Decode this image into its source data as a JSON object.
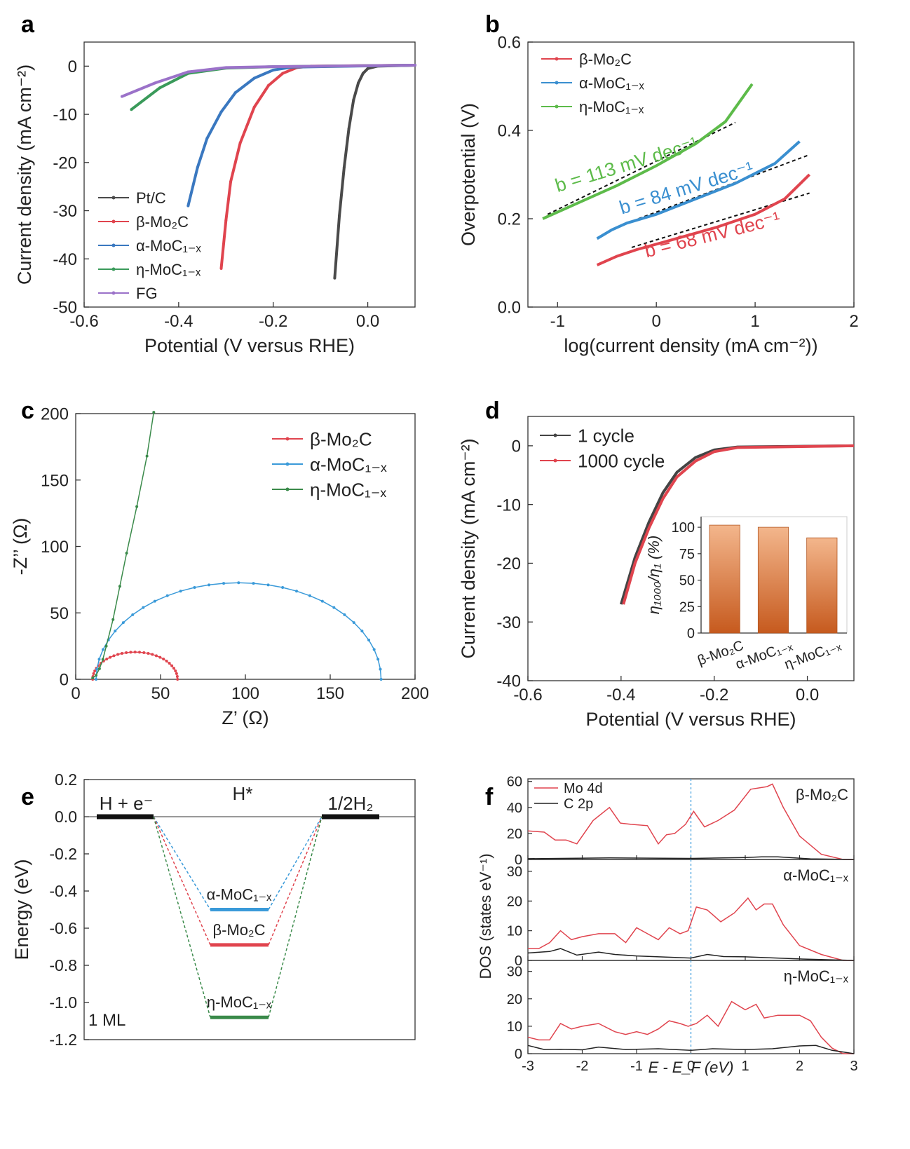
{
  "panels": {
    "a": "a",
    "b": "b",
    "c": "c",
    "d": "d",
    "e": "e",
    "f": "f"
  },
  "chart_data": [
    {
      "id": "a",
      "type": "line",
      "xlabel": "Potential (V versus RHE)",
      "ylabel": "Current density (mA cm⁻²)",
      "xlim": [
        -0.6,
        0.1
      ],
      "ylim": [
        -50,
        5
      ],
      "xticks": [
        -0.6,
        -0.4,
        -0.2,
        0.0
      ],
      "xtick_labels": [
        "-0.6",
        "-0.4",
        "-0.2",
        "0.0"
      ],
      "yticks": [
        0,
        -10,
        -20,
        -30,
        -40,
        -50
      ],
      "ytick_labels": [
        "0",
        "-10",
        "-20",
        "-30",
        "-40",
        "-50"
      ],
      "legend": "bottom-left",
      "grid": false,
      "series": [
        {
          "name": "Pt/C",
          "color": "#4a4a4a",
          "x": [
            0.1,
            0.02,
            0.0,
            -0.01,
            -0.02,
            -0.03,
            -0.04,
            -0.05,
            -0.06,
            -0.07
          ],
          "y": [
            0.2,
            0,
            -0.5,
            -1.5,
            -3.5,
            -7,
            -13,
            -21,
            -31,
            -44
          ]
        },
        {
          "name": "β-Mo₂C",
          "color": "#e0444e",
          "x": [
            0.1,
            -0.12,
            -0.15,
            -0.18,
            -0.21,
            -0.24,
            -0.27,
            -0.29,
            -0.3,
            -0.31
          ],
          "y": [
            0.2,
            0,
            -0.3,
            -1.5,
            -4,
            -8.5,
            -16,
            -24,
            -32,
            -42
          ]
        },
        {
          "name": "α-MoC₁₋ₓ",
          "color": "#3a78c0",
          "x": [
            0.1,
            -0.16,
            -0.2,
            -0.24,
            -0.28,
            -0.31,
            -0.34,
            -0.36,
            -0.38
          ],
          "y": [
            0.2,
            -0.2,
            -0.8,
            -2.5,
            -5.5,
            -9.5,
            -15,
            -21,
            -29
          ]
        },
        {
          "name": "η-MoC₁₋ₓ",
          "color": "#3a9a5a",
          "x": [
            0.1,
            -0.2,
            -0.3,
            -0.38,
            -0.44,
            -0.5
          ],
          "y": [
            0.2,
            -0.1,
            -0.4,
            -1.5,
            -4.5,
            -9
          ]
        },
        {
          "name": "FG",
          "color": "#9b72c9",
          "x": [
            0.1,
            -0.2,
            -0.3,
            -0.38,
            -0.45,
            -0.52
          ],
          "y": [
            0.2,
            -0.1,
            -0.3,
            -1.2,
            -3.5,
            -6.3
          ]
        }
      ]
    },
    {
      "id": "b",
      "type": "line",
      "xlabel": "log(current density (mA cm⁻²))",
      "ylabel": "Overpotential (V)",
      "xlim": [
        -1.3,
        2
      ],
      "ylim": [
        0,
        0.6
      ],
      "xticks": [
        -1,
        0,
        1,
        2
      ],
      "xtick_labels": [
        "-1",
        "0",
        "1",
        "2"
      ],
      "yticks": [
        0,
        0.2,
        0.4,
        0.6
      ],
      "ytick_labels": [
        "0.0",
        "0.2",
        "0.4",
        "0.6"
      ],
      "legend": "top-left",
      "grid": false,
      "series": [
        {
          "name": "β-Mo₂C",
          "color": "#e0444e",
          "x": [
            -0.6,
            -0.4,
            -0.2,
            0.2,
            0.6,
            1.0,
            1.3,
            1.55
          ],
          "y": [
            0.095,
            0.115,
            0.13,
            0.155,
            0.18,
            0.21,
            0.245,
            0.3
          ]
        },
        {
          "name": "α-MoC₁₋ₓ",
          "color": "#3a8fd0",
          "x": [
            -0.6,
            -0.45,
            -0.3,
            0.0,
            0.4,
            0.8,
            1.2,
            1.45
          ],
          "y": [
            0.155,
            0.175,
            0.19,
            0.21,
            0.245,
            0.28,
            0.325,
            0.375
          ]
        },
        {
          "name": "η-MoC₁₋ₓ",
          "color": "#5dbb4a",
          "x": [
            -1.15,
            -0.8,
            -0.4,
            0.0,
            0.4,
            0.7,
            0.97
          ],
          "y": [
            0.2,
            0.235,
            0.275,
            0.32,
            0.37,
            0.42,
            0.505
          ]
        }
      ],
      "fits": [
        {
          "x": [
            -0.25,
            1.55
          ],
          "y": [
            0.135,
            0.258
          ]
        },
        {
          "x": [
            -0.3,
            1.55
          ],
          "y": [
            0.19,
            0.345
          ]
        },
        {
          "x": [
            -1.1,
            0.8
          ],
          "y": [
            0.21,
            0.418
          ]
        }
      ],
      "annotations": [
        {
          "text": "b = 113 mV dec⁻¹",
          "color": "#5dbb4a"
        },
        {
          "text": "b = 84 mV dec⁻¹",
          "color": "#3a8fd0"
        },
        {
          "text": "b = 68 mV dec⁻¹",
          "color": "#e0444e"
        }
      ]
    },
    {
      "id": "c",
      "type": "line",
      "xlabel": "Z’ (Ω)",
      "ylabel": "-Z’’ (Ω)",
      "xlim": [
        0,
        200
      ],
      "ylim": [
        0,
        200
      ],
      "xticks": [
        0,
        50,
        100,
        150,
        200
      ],
      "xtick_labels": [
        "0",
        "50",
        "100",
        "150",
        "200"
      ],
      "yticks": [
        0,
        50,
        100,
        150,
        200
      ],
      "ytick_labels": [
        "0",
        "50",
        "100",
        "150",
        "200"
      ],
      "legend": "top-right",
      "grid": false,
      "series": [
        {
          "name": "β-Mo₂C",
          "color": "#e0444e",
          "arc": {
            "cx": 35,
            "r": 25
          },
          "x": [],
          "y": []
        },
        {
          "name": "α-MoC₁₋ₓ",
          "color": "#3a9ad9",
          "arc": {
            "cx": 96,
            "r": 84,
            "yscale": 0.865
          },
          "x": [],
          "y": []
        },
        {
          "name": "η-MoC₁₋ₓ",
          "color": "#3a8a4a",
          "x": [
            10,
            12,
            14,
            16,
            18,
            22,
            26,
            30,
            36,
            42,
            46
          ],
          "y": [
            1,
            3,
            8,
            15,
            25,
            45,
            70,
            95,
            130,
            168,
            201
          ]
        }
      ]
    },
    {
      "id": "d",
      "type": "line",
      "xlabel": "Potential (V versus RHE)",
      "ylabel": "Current density (mA cm⁻²)",
      "xlim": [
        -0.6,
        0.1
      ],
      "ylim": [
        -40,
        5
      ],
      "xticks": [
        -0.6,
        -0.4,
        -0.2,
        0.0
      ],
      "xtick_labels": [
        "-0.6",
        "-0.4",
        "-0.2",
        "0.0"
      ],
      "yticks": [
        0,
        -10,
        -20,
        -30,
        -40
      ],
      "ytick_labels": [
        "0",
        "-10",
        "-20",
        "-30",
        "-40"
      ],
      "legend": "top-left",
      "grid": false,
      "series": [
        {
          "name": "1 cycle",
          "color": "#444444",
          "x": [
            0.1,
            -0.15,
            -0.2,
            -0.24,
            -0.28,
            -0.31,
            -0.34,
            -0.37,
            -0.4
          ],
          "y": [
            0,
            -0.2,
            -0.7,
            -2,
            -4.5,
            -8,
            -13,
            -19,
            -27
          ]
        },
        {
          "name": "1000 cycle",
          "color": "#e0444e",
          "x": [
            0.1,
            -0.15,
            -0.2,
            -0.24,
            -0.28,
            -0.31,
            -0.34,
            -0.37,
            -0.395
          ],
          "y": [
            0,
            -0.3,
            -1,
            -2.6,
            -5.3,
            -9,
            -14,
            -20,
            -27
          ]
        }
      ],
      "inset": {
        "type": "bar",
        "ylabel": "η₁₀₀₀/η₁ (%)",
        "ylim": [
          0,
          110
        ],
        "yticks": [
          0,
          25,
          50,
          75,
          100
        ],
        "ytick_labels": [
          "0",
          "25",
          "50",
          "75",
          "100"
        ],
        "categories": [
          "β-Mo₂C",
          "α-MoC₁₋ₓ",
          "η-MoC₁₋ₓ"
        ],
        "values": [
          102,
          100,
          90
        ]
      }
    },
    {
      "id": "e",
      "type": "line",
      "title": "",
      "ylabel": "Energy (eV)",
      "ylim": [
        -1.2,
        0.2
      ],
      "yticks": [
        0.2,
        0.0,
        -0.2,
        -0.4,
        -0.6,
        -0.8,
        -1.0,
        -1.2
      ],
      "ytick_labels": [
        "0.2",
        "0.0",
        "-0.2",
        "-0.4",
        "-0.6",
        "-0.8",
        "-1.0",
        "-1.2"
      ],
      "states": [
        "H + e⁻",
        "H*",
        "1/2H₂"
      ],
      "corner_label": "1 ML",
      "series": [
        {
          "name": "α-MoC₁₋ₓ",
          "color": "#3a9ad9",
          "value": -0.5
        },
        {
          "name": "β-Mo₂C",
          "color": "#e0444e",
          "value": -0.69
        },
        {
          "name": "η-MoC₁₋ₓ",
          "color": "#3a8a4a",
          "value": -1.08
        }
      ]
    },
    {
      "id": "f",
      "type": "line",
      "xlabel": "E - E_F (eV)",
      "ylabel": "DOS (states eV⁻¹)",
      "xlim": [
        -3,
        3
      ],
      "xticks": [
        -3,
        -2,
        -1,
        0,
        1,
        2,
        3
      ],
      "xtick_labels": [
        "-3",
        "-2",
        "-1",
        "0",
        "1",
        "2",
        "3"
      ],
      "legend": "top-left",
      "legend_entries": [
        "Mo 4d",
        "C 2p"
      ],
      "subplots": [
        {
          "label": "β-Mo₂C",
          "ylim": [
            0,
            62
          ],
          "yticks": [
            0,
            20,
            40,
            60
          ],
          "ytick_labels": [
            "0",
            "20",
            "40",
            "60"
          ],
          "series": [
            {
              "name": "Mo 4d",
              "color": "#e0444e",
              "x": [
                -3,
                -2.7,
                -2.5,
                -2.3,
                -2.1,
                -1.8,
                -1.5,
                -1.3,
                -1.1,
                -0.8,
                -0.6,
                -0.45,
                -0.3,
                -0.1,
                0.05,
                0.25,
                0.5,
                0.8,
                1.1,
                1.4,
                1.5,
                1.7,
                2.0,
                2.4,
                2.8,
                3
              ],
              "y": [
                22,
                21,
                15,
                15,
                12,
                30,
                40,
                28,
                27,
                26,
                12,
                19,
                20,
                27,
                37,
                25,
                30,
                38,
                54,
                56,
                58,
                40,
                18,
                4,
                0,
                0
              ]
            },
            {
              "name": "C 2p",
              "color": "#222222",
              "x": [
                -3,
                -1.5,
                0,
                1,
                1.3,
                1.6,
                2.2,
                3
              ],
              "y": [
                0.6,
                1.2,
                0.8,
                1.5,
                2,
                2,
                0.5,
                0
              ]
            }
          ]
        },
        {
          "label": "α-MoC₁₋ₓ",
          "ylim": [
            0,
            34
          ],
          "yticks": [
            0,
            10,
            20,
            30
          ],
          "ytick_labels": [
            "0",
            "10",
            "20",
            "30"
          ],
          "series": [
            {
              "name": "Mo 4d",
              "color": "#e0444e",
              "x": [
                -3,
                -2.8,
                -2.6,
                -2.4,
                -2.2,
                -2,
                -1.7,
                -1.4,
                -1.2,
                -1,
                -0.8,
                -0.6,
                -0.4,
                -0.2,
                -0.05,
                0.1,
                0.3,
                0.55,
                0.8,
                1.05,
                1.2,
                1.35,
                1.5,
                1.7,
                2.0,
                2.4,
                2.8,
                3
              ],
              "y": [
                4,
                4,
                6,
                10,
                7,
                8,
                9,
                9,
                6,
                11,
                9,
                7,
                11,
                9,
                10,
                18,
                17,
                13,
                16,
                21,
                17,
                19,
                19,
                12,
                5,
                2,
                0,
                0
              ]
            },
            {
              "name": "C 2p",
              "color": "#222222",
              "x": [
                -3,
                -2.6,
                -2.4,
                -2.1,
                -1.7,
                -1.4,
                -1,
                0,
                0.3,
                0.6,
                1,
                2,
                3
              ],
              "y": [
                2.5,
                3,
                4,
                1.8,
                2.8,
                2,
                1.5,
                0.8,
                2,
                1.3,
                1.2,
                0.5,
                0
              ]
            }
          ]
        },
        {
          "label": "η-MoC₁₋ₓ",
          "ylim": [
            0,
            34
          ],
          "yticks": [
            0,
            10,
            20,
            30
          ],
          "ytick_labels": [
            "0",
            "10",
            "20",
            "30"
          ],
          "series": [
            {
              "name": "Mo 4d",
              "color": "#e0444e",
              "x": [
                -3,
                -2.8,
                -2.6,
                -2.4,
                -2.2,
                -2,
                -1.7,
                -1.4,
                -1.2,
                -1,
                -0.8,
                -0.6,
                -0.4,
                -0.2,
                -0.05,
                0.1,
                0.3,
                0.5,
                0.75,
                1.0,
                1.2,
                1.35,
                1.6,
                1.8,
                2.0,
                2.2,
                2.4,
                2.6,
                2.8,
                3
              ],
              "y": [
                6,
                5,
                5,
                11,
                9,
                10,
                11,
                8,
                7,
                8,
                7,
                9,
                12,
                11,
                10,
                11,
                14,
                10,
                19,
                16,
                18,
                13,
                14,
                14,
                14,
                12,
                6,
                2,
                0,
                0
              ]
            },
            {
              "name": "C 2p",
              "color": "#222222",
              "x": [
                -3,
                -2.7,
                -2.4,
                -2,
                -1.7,
                -1.2,
                -0.6,
                0,
                0.4,
                1,
                1.5,
                2,
                2.3,
                2.6,
                3
              ],
              "y": [
                3,
                1.5,
                1.6,
                1.4,
                2.4,
                1.5,
                1.8,
                1.2,
                1.8,
                1.5,
                1.8,
                2.8,
                3,
                1.2,
                0
              ]
            }
          ]
        }
      ]
    }
  ]
}
